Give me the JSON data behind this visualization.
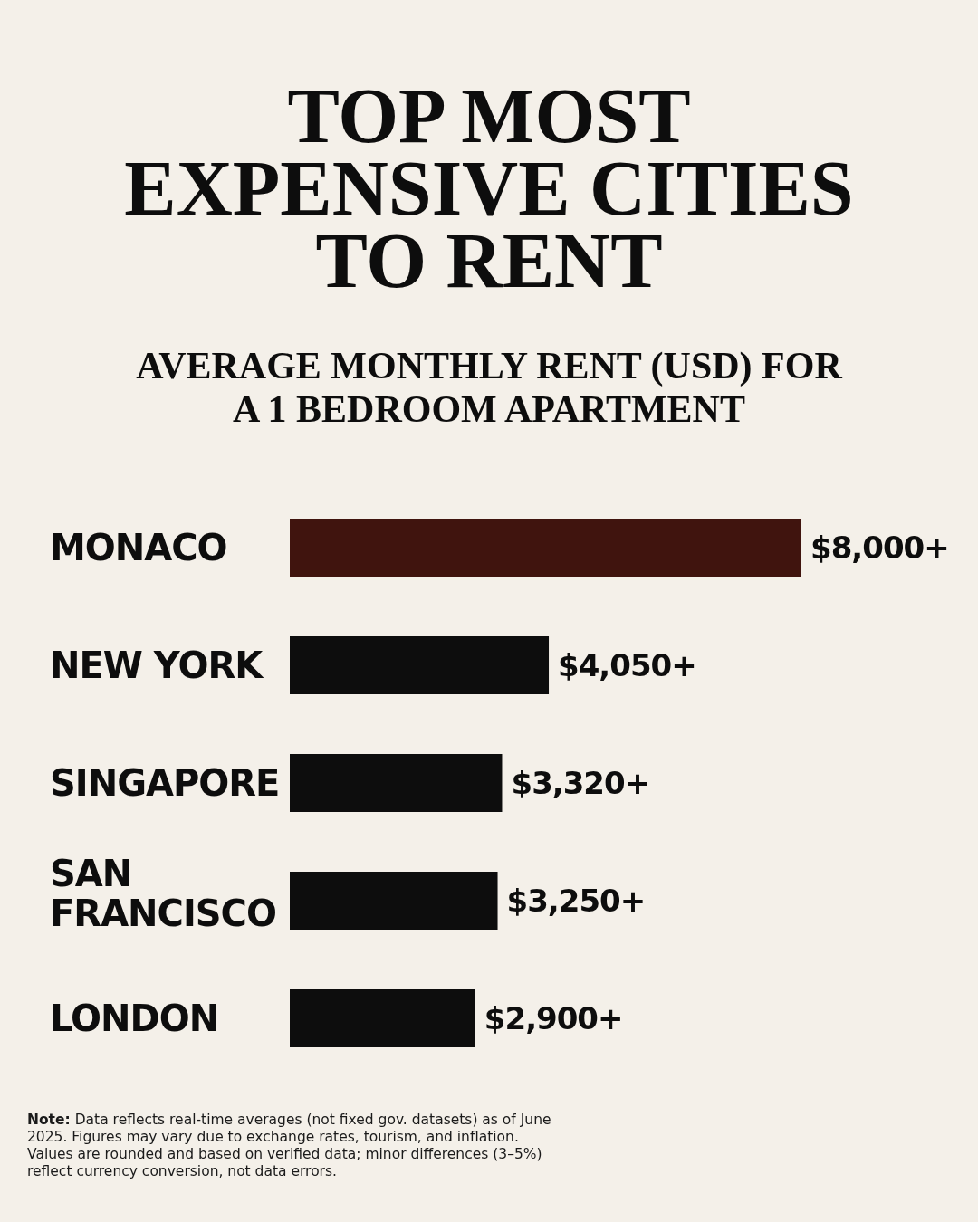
{
  "chart_data": {
    "type": "bar",
    "orientation": "horizontal",
    "title": "TOP MOST EXPENSIVE CITIES TO RENT",
    "subtitle": "AVERAGE MONTHLY RENT (USD) FOR A 1 BEDROOM APARTMENT",
    "categories": [
      "MONACO",
      "NEW YORK",
      "SINGAPORE",
      "SAN FRANCISCO",
      "LONDON"
    ],
    "values": [
      8000,
      4050,
      3320,
      3250,
      2900
    ],
    "value_labels": [
      "$8,000+",
      "$4,050+",
      "$3,320+",
      "$3,250+",
      "$2,900+"
    ],
    "colors": [
      "#40140e",
      "#0d0d0d",
      "#0d0d0d",
      "#0d0d0d",
      "#0d0d0d"
    ],
    "annotations": [
      "Note: Data reflects real-time averages (not fixed gov. datasets) as of June 2025. Figures may vary due to exchange rates, tourism, and inflation. Values are rounded and based on verified data; minor differences (3–5%) reflect currency conversion, not data errors."
    ]
  }
}
